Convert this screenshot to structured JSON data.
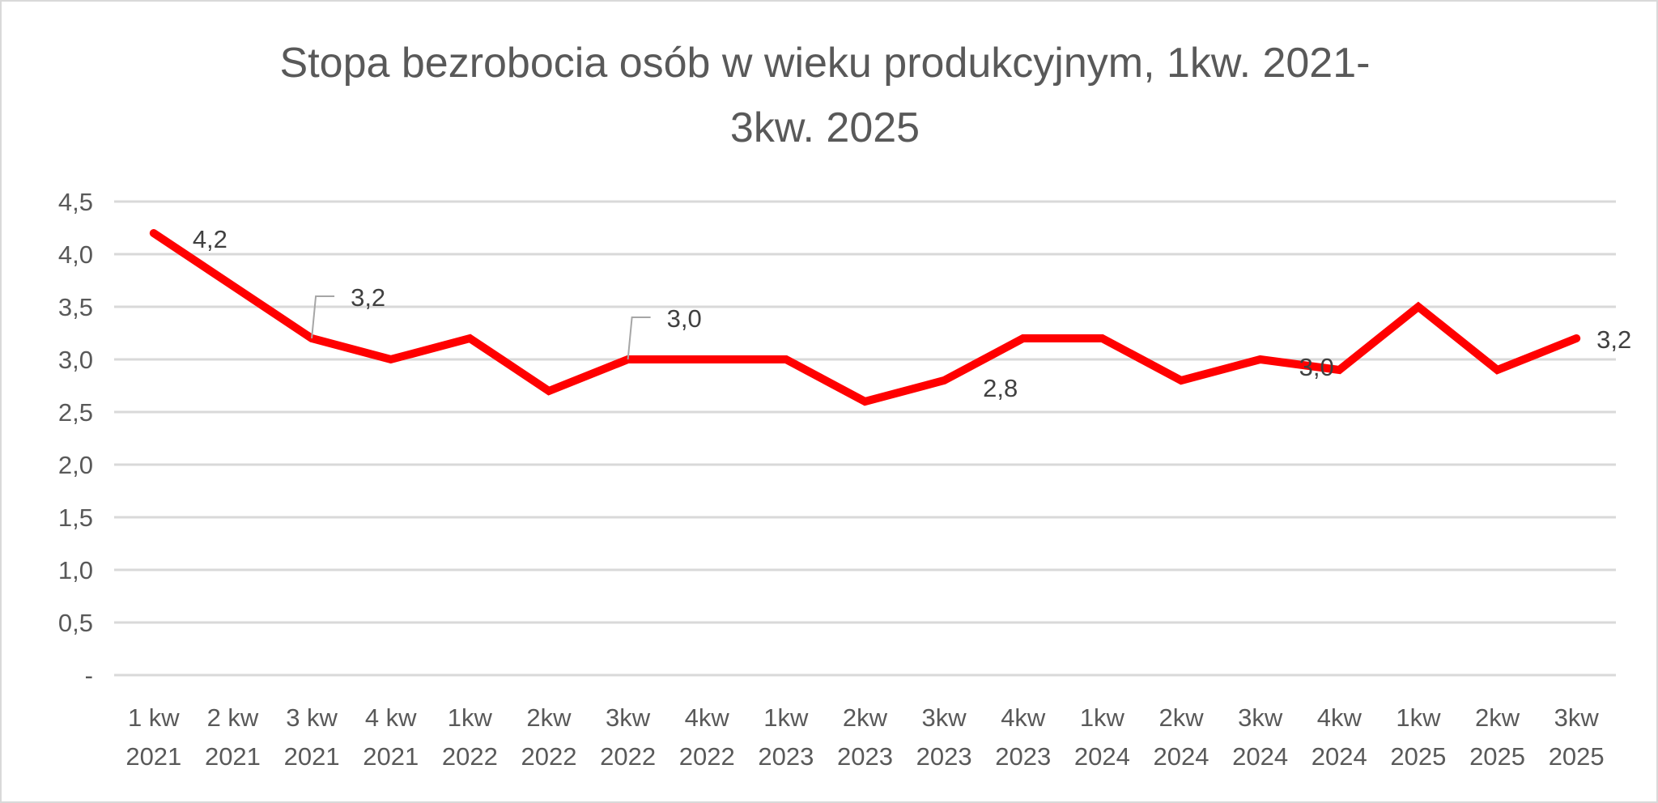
{
  "chart_data": {
    "type": "line",
    "title": "Stopa bezrobocia osób w wieku produkcyjnym, 1kw. 2021-3kw. 2025",
    "title_lines": [
      "Stopa bezrobocia osób w wieku produkcyjnym, 1kw. 2021-",
      "3kw. 2025"
    ],
    "xlabel": "",
    "ylabel": "",
    "ylim": [
      0,
      4.5
    ],
    "yticks": [
      0,
      0.5,
      1.0,
      1.5,
      2.0,
      2.5,
      3.0,
      3.5,
      4.0,
      4.5
    ],
    "ytick_labels": [
      "-",
      "0,5",
      "1,0",
      "1,5",
      "2,0",
      "2,5",
      "3,0",
      "3,5",
      "4,0",
      "4,5"
    ],
    "grid": true,
    "legend": "none",
    "categories": [
      [
        "1 kw",
        "2021"
      ],
      [
        "2 kw",
        "2021"
      ],
      [
        "3 kw",
        "2021"
      ],
      [
        "4 kw",
        "2021"
      ],
      [
        "1kw",
        "2022"
      ],
      [
        "2kw",
        "2022"
      ],
      [
        "3kw",
        "2022"
      ],
      [
        "4kw",
        "2022"
      ],
      [
        "1kw",
        "2023"
      ],
      [
        "2kw",
        "2023"
      ],
      [
        "3kw",
        "2023"
      ],
      [
        "4kw",
        "2023"
      ],
      [
        "1kw",
        "2024"
      ],
      [
        "2kw",
        "2024"
      ],
      [
        "3kw",
        "2024"
      ],
      [
        "4kw",
        "2024"
      ],
      [
        "1kw",
        "2025"
      ],
      [
        "2kw",
        "2025"
      ],
      [
        "3kw",
        "2025"
      ]
    ],
    "series": [
      {
        "color": "#FF0000",
        "values": [
          4.2,
          3.7,
          3.2,
          3.0,
          3.2,
          2.7,
          3.0,
          3.0,
          3.0,
          2.6,
          2.8,
          3.2,
          3.2,
          2.8,
          3.0,
          2.9,
          3.5,
          2.9,
          3.2
        ]
      }
    ],
    "data_labels": [
      {
        "index": 0,
        "text": "4,2"
      },
      {
        "index": 2,
        "text": "3,2",
        "leader": true
      },
      {
        "index": 6,
        "text": "3,0",
        "leader": true
      },
      {
        "index": 10,
        "text": "2,8"
      },
      {
        "index": 14,
        "text": "3,0"
      },
      {
        "index": 18,
        "text": "3,2"
      }
    ],
    "colors": {
      "line": "#FF0000",
      "grid": "#D9D9D9",
      "text": "#595959",
      "frame": "#D9D9D9"
    }
  }
}
